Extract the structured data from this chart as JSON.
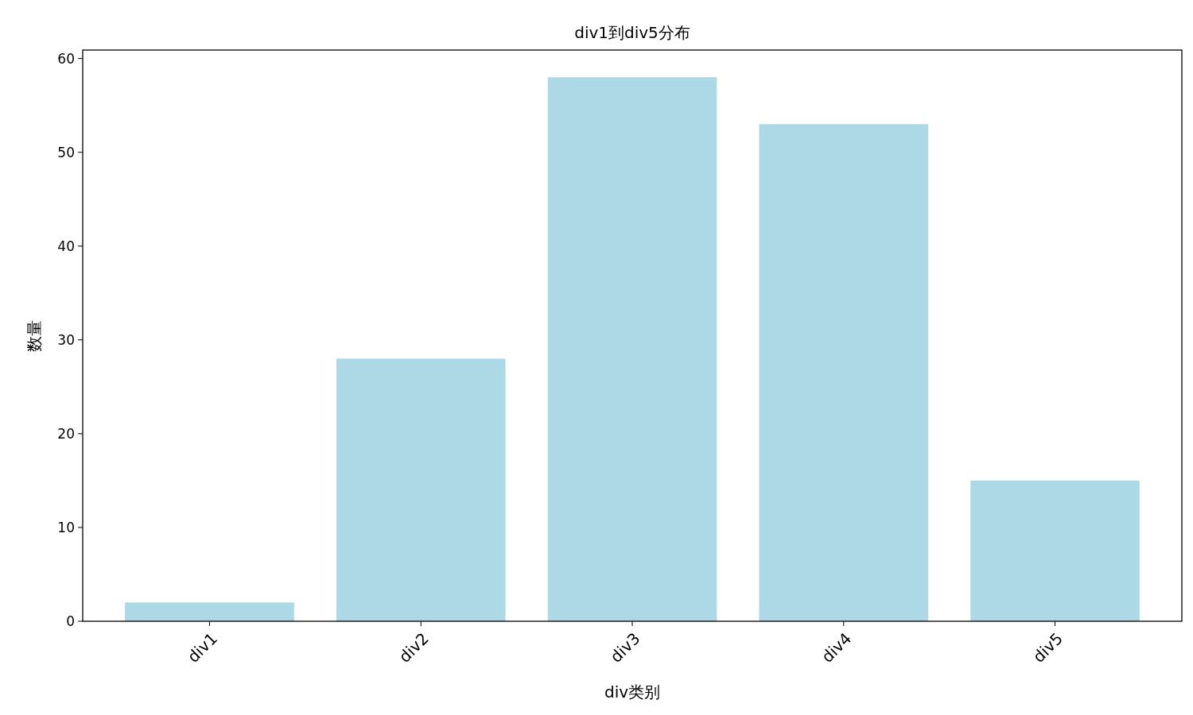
{
  "chart_data": {
    "type": "bar",
    "title": "div1到div5分布",
    "xlabel": "div类别",
    "ylabel": "数量",
    "categories": [
      "div1",
      "div2",
      "div3",
      "div4",
      "div5"
    ],
    "values": [
      2,
      28,
      58,
      53,
      15
    ],
    "color": "#add8e6",
    "ylim": [
      0,
      60.9
    ],
    "yticks": [
      0,
      10,
      20,
      30,
      40,
      50,
      60
    ],
    "grid": false
  }
}
